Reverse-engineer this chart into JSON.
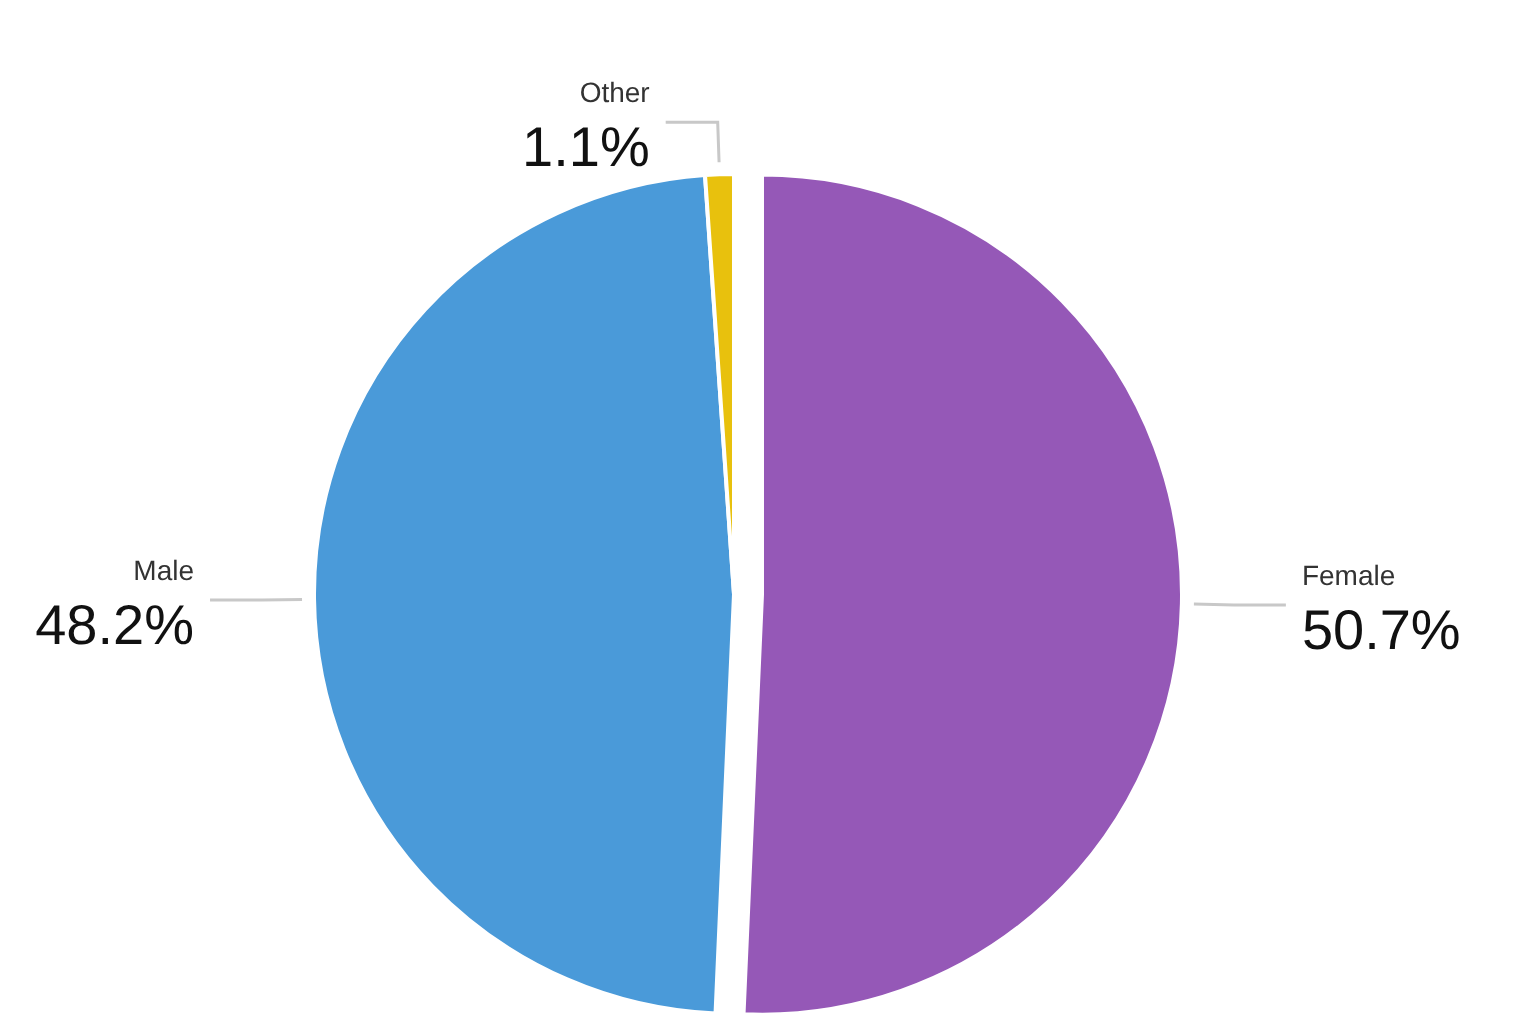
{
  "chart_data": {
    "type": "pie",
    "categories": [
      "Female",
      "Male",
      "Other"
    ],
    "values": [
      50.7,
      48.2,
      1.1
    ],
    "value_labels": [
      "50.7%",
      "48.2%",
      "1.1%"
    ],
    "colors": [
      "#9558b7",
      "#4a9ad9",
      "#e8c10d"
    ]
  }
}
